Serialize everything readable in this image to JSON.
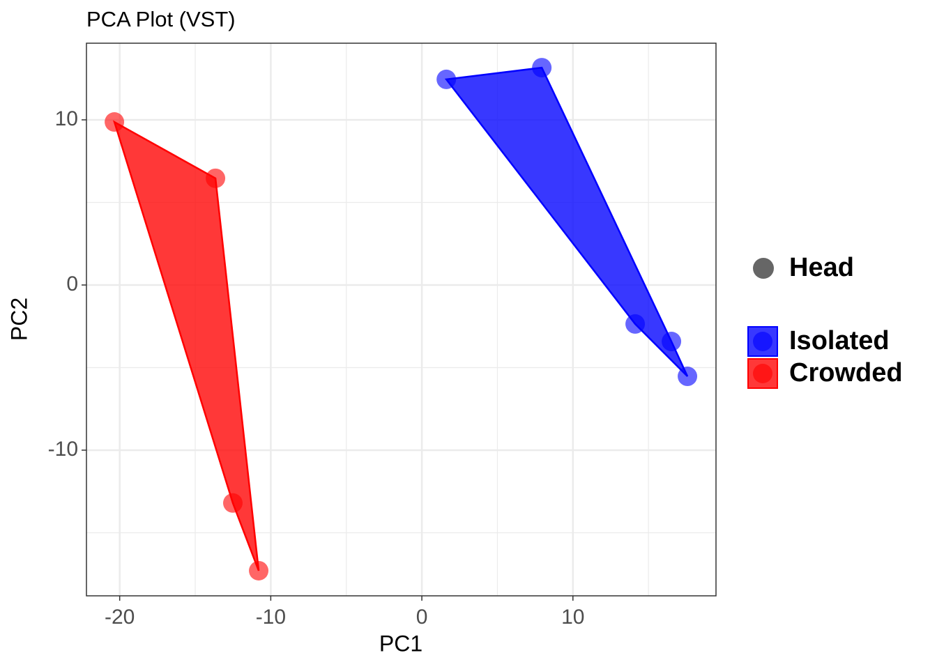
{
  "chart_data": {
    "type": "scatter",
    "title": "PCA Plot (VST)",
    "x_label": "PC1",
    "y_label": "PC2",
    "xlim": [
      -22.2,
      19.47
    ],
    "ylim": [
      -18.82,
      14.64
    ],
    "xticks": [
      -20,
      -10,
      0,
      10
    ],
    "yticks": [
      -10,
      0,
      10
    ],
    "grid": true,
    "shape_legend": "Head",
    "shape_color": "#666666",
    "legend": "right",
    "series": [
      {
        "name": "Isolated",
        "color": "#0000ff",
        "x": [
          1.62,
          7.94,
          14.12,
          16.52,
          17.58
        ],
        "values": [
          12.45,
          13.16,
          -2.36,
          -3.42,
          -5.53
        ]
      },
      {
        "name": "Crowded",
        "color": "#ff0000",
        "x": [
          -20.35,
          -13.66,
          -12.51,
          -10.8
        ],
        "values": [
          9.87,
          6.46,
          -13.2,
          -17.3
        ]
      }
    ]
  }
}
